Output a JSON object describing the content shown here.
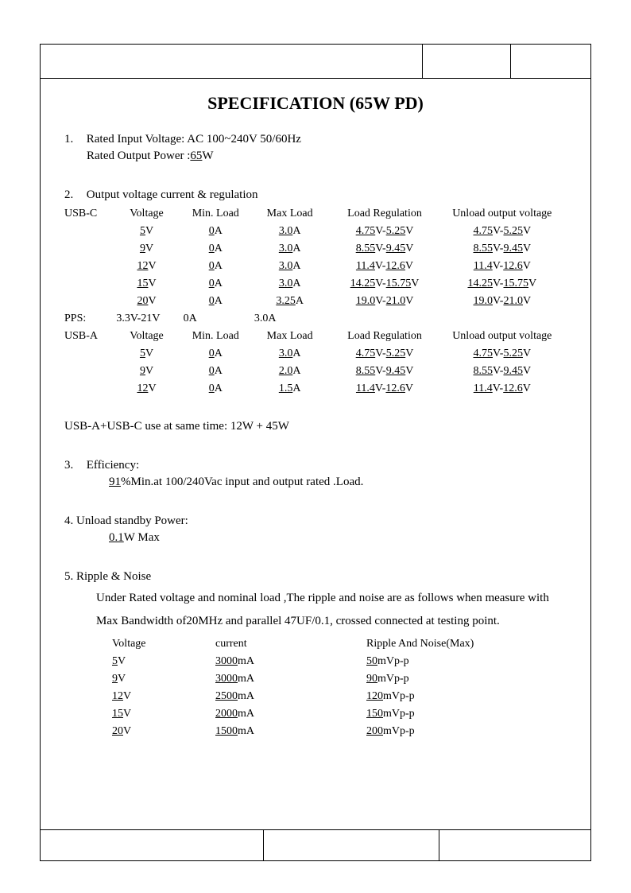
{
  "title": "SPECIFICATION (65W PD)",
  "s1": {
    "num": "1.",
    "l1a": "Rated Input Voltage: AC 100~240V 50/60Hz",
    "l1b_pre": "Rated Output Power :",
    "l1b_val": "65",
    "l1b_suf": "W"
  },
  "s2": {
    "num": "2.",
    "title": "Output voltage current & regulation",
    "headers": {
      "port_c": "USB-C",
      "port_a": "USB-A",
      "pps": "PPS:",
      "voltage": "Voltage",
      "min": "Min. Load",
      "max": "Max Load",
      "reg": "Load Regulation",
      "unl": "Unload output voltage"
    },
    "usb_c": [
      {
        "v": "5",
        "min": "0",
        "max": "3.0",
        "r1": "4.75",
        "r2": "5.25",
        "u1": "4.75",
        "u2": "5.25"
      },
      {
        "v": "9",
        "min": "0",
        "max": "3.0",
        "r1": "8.55",
        "r2": "9.45",
        "u1": "8.55",
        "u2": "9.45"
      },
      {
        "v": "12",
        "min": "0",
        "max": "3.0",
        "r1": "11.4",
        "r2": "12.6",
        "u1": "11.4",
        "u2": "12.6"
      },
      {
        "v": "15",
        "min": "0",
        "max": "3.0",
        "r1": "14.25",
        "r2": "15.75",
        "u1": "14.25",
        "u2": "15.75"
      },
      {
        "v": "20",
        "min": "0",
        "max": "3.25",
        "r1": "19.0",
        "r2": "21.0",
        "u1": "19.0",
        "u2": "21.0"
      }
    ],
    "pps": {
      "v": "3.3V-21V",
      "min": "0A",
      "max": "3.0A"
    },
    "usb_a": [
      {
        "v": "5",
        "min": "0",
        "max": "3.0",
        "r1": "4.75",
        "r2": "5.25",
        "u1": "4.75",
        "u2": "5.25"
      },
      {
        "v": "9",
        "min": "0",
        "max": "2.0",
        "r1": "8.55",
        "r2": "9.45",
        "u1": "8.55",
        "u2": "9.45"
      },
      {
        "v": "12",
        "min": "0",
        "max": "1.5",
        "r1": "11.4",
        "r2": "12.6",
        "u1": "11.4",
        "u2": "12.6"
      }
    ],
    "combo": "USB-A+USB-C use at same time: 12W + 45W"
  },
  "s3": {
    "num": "3.",
    "title": "Efficiency:",
    "val": "91",
    "suf": "%Min.at 100/240Vac input and output rated .Load."
  },
  "s4": {
    "num": "4.",
    "title": "Unload standby Power:",
    "val": "0.1",
    "suf": "W Max"
  },
  "s5": {
    "num": "5.",
    "title": "Ripple & Noise",
    "desc": "Under Rated voltage and nominal load ,The ripple and noise are as follows when measure with Max Bandwidth of20MHz and parallel 47UF/0.1, crossed connected at testing point.",
    "headers": {
      "v": "Voltage",
      "c": "current",
      "r": "Ripple And Noise(Max)"
    },
    "rows": [
      {
        "v": "5",
        "c": "3000",
        "r": "50"
      },
      {
        "v": "9",
        "c": "3000",
        "r": "90"
      },
      {
        "v": "12",
        "c": "2500",
        "r": "120"
      },
      {
        "v": "15",
        "c": "2000",
        "r": "150"
      },
      {
        "v": "20",
        "c": "1500",
        "r": "200"
      }
    ]
  }
}
